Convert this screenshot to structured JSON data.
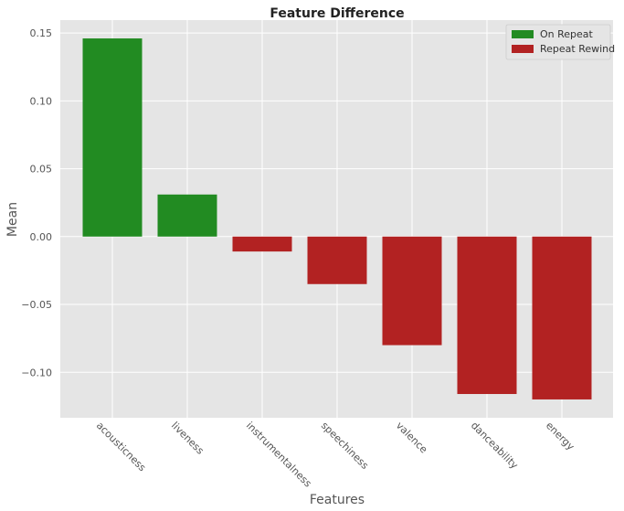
{
  "chart_data": {
    "type": "bar",
    "title": "Feature Difference",
    "xlabel": "Features",
    "ylabel": "Mean",
    "categories": [
      "acousticness",
      "liveness",
      "instrumentalness",
      "speechiness",
      "valence",
      "danceability",
      "energy"
    ],
    "values": [
      0.146,
      0.031,
      -0.011,
      -0.035,
      -0.08,
      -0.116,
      -0.12
    ],
    "ylim": [
      -0.1335,
      0.1595
    ],
    "yticks": [
      0.15,
      0.1,
      0.05,
      0.0,
      -0.05,
      -0.1
    ],
    "ytick_labels": [
      "0.15",
      "0.10",
      "0.05",
      "0.00",
      "−0.05",
      "−0.10"
    ],
    "grid": true,
    "legend": {
      "placement": "top-right",
      "entries": [
        {
          "label": "On Repeat",
          "color": "#228B22"
        },
        {
          "label": "Repeat Rewind",
          "color": "#B22222"
        }
      ]
    },
    "colors": {
      "positive": "#228B22",
      "negative": "#B22222",
      "background": "#E5E5E5",
      "grid": "#FFFFFF"
    }
  }
}
